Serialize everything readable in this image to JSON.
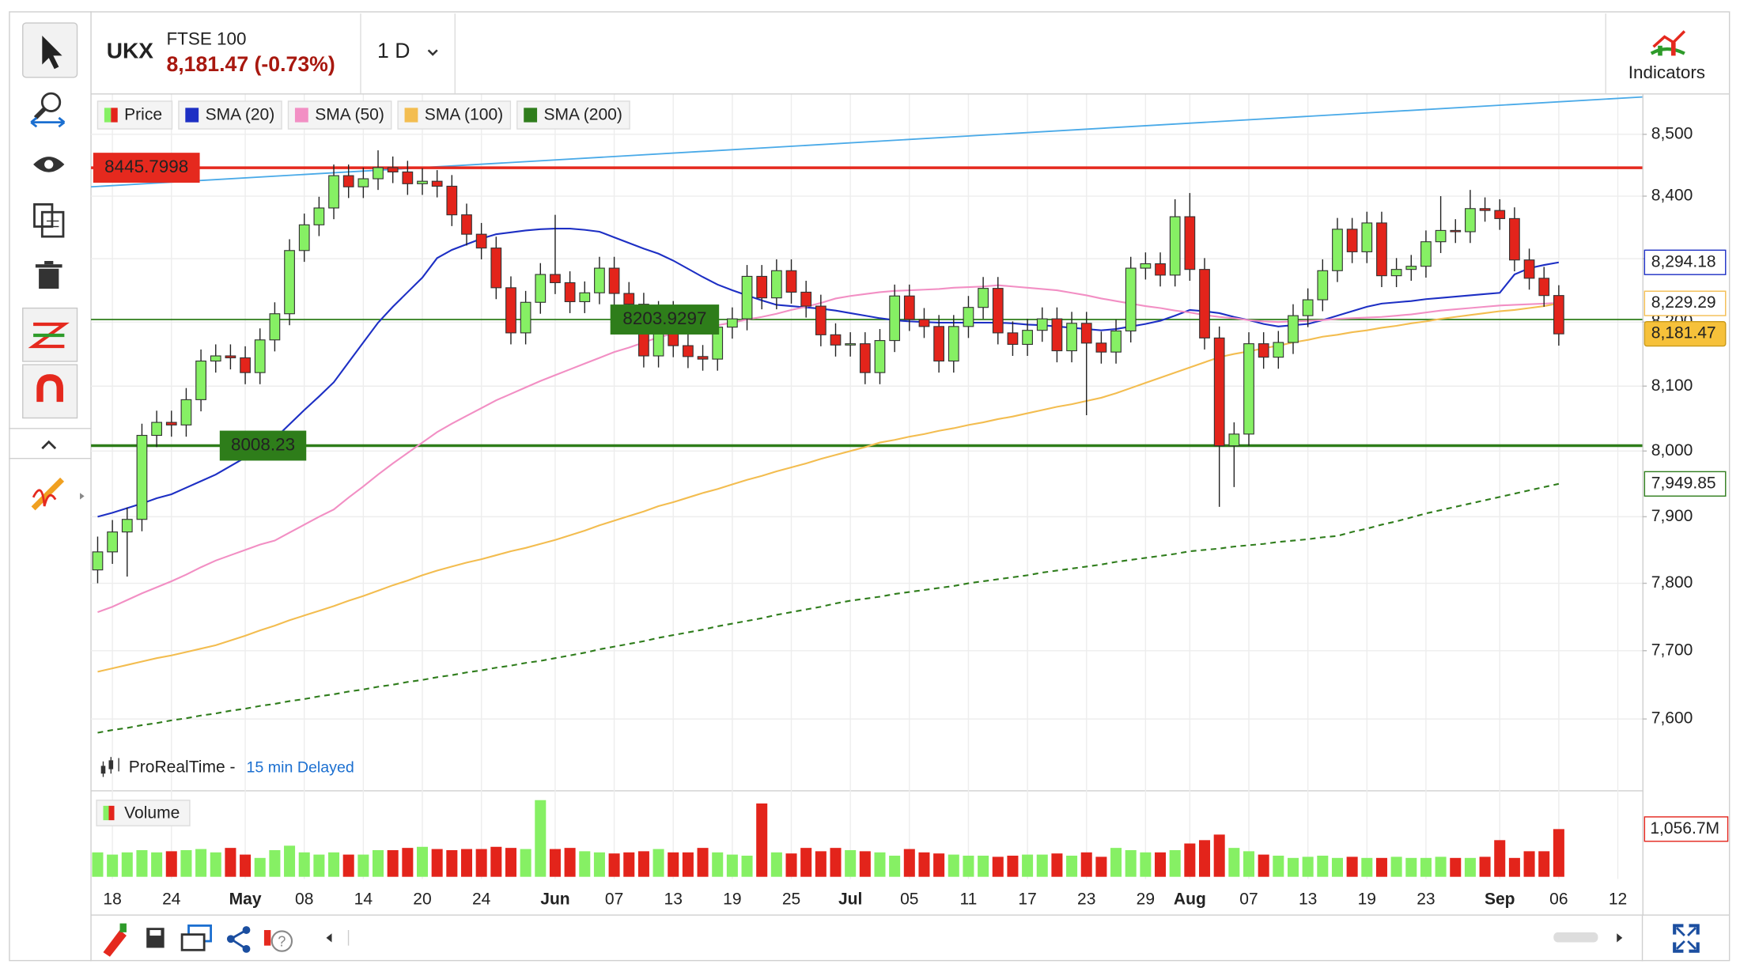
{
  "header": {
    "symbol": "UKX",
    "name": "FTSE 100",
    "quote": "8,181.47 (-0.73%)",
    "interval": "1 D",
    "indicators": "Indicators"
  },
  "footer": {
    "source": "ProRealTime -",
    "delay": "15 min Delayed"
  },
  "chart_data": {
    "type": "candlestick",
    "log_scale": true,
    "grid": true,
    "ylim": [
      7497,
      8565
    ],
    "yticks": [
      {
        "value": 7600,
        "label": "7,600"
      },
      {
        "value": 7700,
        "label": "7,700"
      },
      {
        "value": 7800,
        "label": "7,800"
      },
      {
        "value": 7900,
        "label": "7,900"
      },
      {
        "value": 8000,
        "label": "8,000"
      },
      {
        "value": 8100,
        "label": "8,100"
      },
      {
        "value": 8200,
        "label": "8,200"
      },
      {
        "value": 8300,
        "label": "8,300"
      },
      {
        "value": 8400,
        "label": "8,400"
      },
      {
        "value": 8500,
        "label": "8,500"
      }
    ],
    "categories": [
      null,
      "18",
      null,
      null,
      null,
      "24",
      null,
      null,
      null,
      null,
      "May",
      null,
      null,
      null,
      "08",
      null,
      null,
      null,
      "14",
      null,
      null,
      null,
      "20",
      null,
      null,
      null,
      "24",
      null,
      null,
      null,
      null,
      "Jun",
      null,
      null,
      null,
      "07",
      null,
      null,
      null,
      "13",
      null,
      null,
      null,
      "19",
      null,
      null,
      null,
      "25",
      null,
      null,
      null,
      "Jul",
      null,
      null,
      null,
      "05",
      null,
      null,
      null,
      "11",
      null,
      null,
      null,
      "17",
      null,
      null,
      null,
      "23",
      null,
      null,
      null,
      "29",
      null,
      null,
      "Aug",
      null,
      null,
      null,
      "07",
      null,
      null,
      null,
      "13",
      null,
      null,
      null,
      "19",
      null,
      null,
      null,
      "23",
      null,
      null,
      null,
      null,
      "Sep",
      null,
      null,
      null,
      "06",
      null,
      null,
      null,
      "12"
    ],
    "candles": {
      "name": "Price",
      "up_color": "#86f064",
      "down_color": "#e3241b",
      "last_label": "8,181.47",
      "open": [
        7820,
        7847,
        7877,
        7896,
        8024,
        8044,
        8040,
        8079,
        8139,
        8147,
        8144,
        8121,
        8172,
        8213,
        8313,
        8354,
        8381,
        8433,
        8415,
        8428,
        8446,
        8439,
        8420,
        8424,
        8416,
        8370,
        8339,
        8317,
        8254,
        8183,
        8231,
        8275,
        8262,
        8232,
        8246,
        8285,
        8245,
        8228,
        8147,
        8215,
        8163,
        8146,
        8142,
        8192,
        8205,
        8272,
        8238,
        8281,
        8247,
        8225,
        8180,
        8164,
        8166,
        8121,
        8171,
        8241,
        8204,
        8193,
        8139,
        8193,
        8223,
        8253,
        8183,
        8165,
        8187,
        8205,
        8155,
        8198,
        8167,
        8153,
        8186,
        8285,
        8292,
        8274,
        8367,
        8283,
        8175,
        8008,
        8026,
        8166,
        8145,
        8168,
        8210,
        8235,
        8281,
        8347,
        8311,
        8357,
        8273,
        8283,
        8288,
        8327,
        8345,
        8343,
        8380,
        8377,
        8364,
        8298,
        8269,
        8241.71,
        null,
        null,
        null,
        null
      ],
      "high": [
        7870,
        7895,
        7914,
        8042,
        8062,
        8062,
        8097,
        8157,
        8165,
        8165,
        8162,
        8190,
        8231,
        8331,
        8372,
        8399,
        8451,
        8451,
        8446,
        8474,
        8464,
        8457,
        8445,
        8442,
        8434,
        8388,
        8357,
        8335,
        8272,
        8249,
        8293,
        8370,
        8280,
        8264,
        8303,
        8303,
        8263,
        8246,
        8233,
        8233,
        8181,
        8164,
        8210,
        8223,
        8290,
        8290,
        8299,
        8299,
        8265,
        8243,
        8198,
        8184,
        8184,
        8189,
        8259,
        8259,
        8222,
        8211,
        8211,
        8241,
        8271,
        8271,
        8201,
        8205,
        8223,
        8223,
        8216,
        8216,
        8185,
        8204,
        8303,
        8310,
        8310,
        8395,
        8405,
        8301,
        8193,
        8044,
        8184,
        8184,
        8186,
        8228,
        8253,
        8299,
        8365,
        8365,
        8375,
        8375,
        8301,
        8306,
        8345,
        8400,
        8363,
        8410,
        8398,
        8395,
        8382,
        8316,
        8287,
        8258,
        null,
        null,
        null,
        null
      ],
      "low": [
        7800,
        7829,
        7810,
        7878,
        8006,
        8022,
        8022,
        8061,
        8121,
        8126,
        8103,
        8103,
        8154,
        8195,
        8295,
        8336,
        8363,
        8397,
        8397,
        8410,
        8421,
        8402,
        8402,
        8398,
        8352,
        8321,
        8299,
        8236,
        8165,
        8165,
        8213,
        8244,
        8214,
        8214,
        8228,
        8227,
        8210,
        8129,
        8129,
        8145,
        8128,
        8124,
        8124,
        8174,
        8187,
        8220,
        8220,
        8229,
        8207,
        8162,
        8146,
        8146,
        8103,
        8103,
        8153,
        8186,
        8175,
        8121,
        8121,
        8175,
        8205,
        8165,
        8147,
        8147,
        8169,
        8137,
        8137,
        8055,
        8135,
        8135,
        8168,
        8267,
        8256,
        8256,
        8265,
        8157,
        7915,
        7945,
        8008,
        8127,
        8127,
        8150,
        8192,
        8217,
        8263,
        8293,
        8293,
        8255,
        8255,
        8265,
        8270,
        8309,
        8325,
        8325,
        8359,
        8346,
        8280,
        8251,
        8224,
        8163,
        null,
        null,
        null,
        null
      ],
      "close": [
        7847,
        7877,
        7896,
        8024,
        8044,
        8040,
        8079,
        8139,
        8147,
        8144,
        8121,
        8172,
        8213,
        8313,
        8354,
        8381,
        8433,
        8415,
        8428,
        8446,
        8439,
        8420,
        8424,
        8416,
        8370,
        8339,
        8317,
        8254,
        8183,
        8231,
        8275,
        8262,
        8232,
        8246,
        8285,
        8245,
        8228,
        8147,
        8215,
        8163,
        8146,
        8142,
        8192,
        8205,
        8272,
        8238,
        8281,
        8247,
        8225,
        8180,
        8164,
        8166,
        8121,
        8171,
        8241,
        8204,
        8193,
        8139,
        8193,
        8223,
        8253,
        8183,
        8165,
        8187,
        8205,
        8155,
        8198,
        8167,
        8153,
        8186,
        8285,
        8292,
        8274,
        8367,
        8283,
        8175,
        8008,
        8026,
        8166,
        8145,
        8168,
        8210,
        8235,
        8281,
        8347,
        8311,
        8357,
        8273,
        8283,
        8288,
        8327,
        8345,
        8343,
        8380,
        8377,
        8364,
        8298,
        8269,
        8241.71,
        8181.47,
        null,
        null,
        null,
        null
      ]
    },
    "series": [
      {
        "name": "SMA (20)",
        "color": "#1d2fc4",
        "last_label": "8,294.18",
        "values": [
          7900,
          7906,
          7913,
          7920,
          7928,
          7934,
          7944,
          7954,
          7964,
          7977,
          7990,
          8004,
          8019,
          8041,
          8063,
          8084,
          8106,
          8137,
          8168,
          8199,
          8224,
          8247,
          8270,
          8301,
          8314,
          8323,
          8332,
          8339,
          8342,
          8345,
          8347,
          8348,
          8348,
          8346,
          8343,
          8334,
          8325,
          8316,
          8308,
          8297,
          8284,
          8271,
          8259,
          8250,
          8242,
          8234,
          8227,
          8225,
          8223,
          8221,
          8218,
          8214,
          8210,
          8206,
          8203,
          8201,
          8200,
          8199,
          8199,
          8199,
          8199,
          8199,
          8198,
          8196,
          8195,
          8193,
          8191,
          8189,
          8187,
          8189,
          8193,
          8197,
          8202,
          8210,
          8219,
          8217,
          8214,
          8208,
          8203,
          8197,
          8193,
          8195,
          8197,
          8203,
          8210,
          8217,
          8224,
          8229,
          8231,
          8233,
          8236,
          8238,
          8240,
          8242,
          8244,
          8246,
          8275,
          8285,
          8290,
          8294.18,
          null,
          null,
          null,
          null
        ]
      },
      {
        "name": "SMA (50)",
        "color": "#f28fc4",
        "values": [
          7757,
          7765,
          7775,
          7785,
          7794,
          7803,
          7813,
          7824,
          7834,
          7842,
          7850,
          7858,
          7864,
          7876,
          7888,
          7900,
          7911,
          7929,
          7946,
          7964,
          7981,
          7997,
          8013,
          8029,
          8042,
          8054,
          8066,
          8078,
          8088,
          8098,
          8108,
          8117,
          8126,
          8135,
          8144,
          8153,
          8160,
          8168,
          8176,
          8182,
          8186,
          8191,
          8195,
          8199,
          8204,
          8208,
          8213,
          8219,
          8224,
          8230,
          8237,
          8241,
          8244,
          8247,
          8249,
          8250,
          8251,
          8252,
          8254,
          8255,
          8256,
          8258,
          8256,
          8254,
          8252,
          8250,
          8246,
          8242,
          8237,
          8233,
          8229,
          8225,
          8222,
          8218,
          8215,
          8211,
          8208,
          8206,
          8203,
          8201,
          8200,
          8201,
          8202,
          8203,
          8205,
          8206,
          8207,
          8208,
          8210,
          8212,
          8215,
          8218,
          8220,
          8222,
          8224,
          8226,
          8227,
          8228,
          8229,
          8230,
          null,
          null,
          null,
          null
        ]
      },
      {
        "name": "SMA (100)",
        "color": "#f3bd50",
        "last_label": "8,229.29",
        "values": [
          7669,
          7674,
          7679,
          7684,
          7689,
          7693,
          7698,
          7703,
          7708,
          7715,
          7722,
          7730,
          7737,
          7745,
          7752,
          7759,
          7766,
          7774,
          7781,
          7789,
          7797,
          7804,
          7812,
          7819,
          7825,
          7831,
          7836,
          7842,
          7848,
          7853,
          7859,
          7865,
          7872,
          7879,
          7887,
          7894,
          7901,
          7908,
          7916,
          7922,
          7929,
          7936,
          7942,
          7949,
          7956,
          7962,
          7969,
          7975,
          7981,
          7988,
          7994,
          8000,
          8006,
          8013,
          8017,
          8022,
          8026,
          8031,
          8035,
          8040,
          8044,
          8049,
          8053,
          8058,
          8063,
          8068,
          8072,
          8077,
          8082,
          8089,
          8097,
          8105,
          8113,
          8121,
          8129,
          8137,
          8145,
          8150,
          8154,
          8159,
          8163,
          8168,
          8172,
          8177,
          8180,
          8184,
          8187,
          8191,
          8194,
          8198,
          8201,
          8205,
          8208,
          8211,
          8214,
          8217,
          8219,
          8222,
          8225,
          8229.29,
          null,
          null,
          null,
          null
        ]
      },
      {
        "name": "SMA (200)",
        "color": "#2f7d1c",
        "line_style": "dashed",
        "last_label": "7,949.85",
        "values": [
          7580,
          7584,
          7587,
          7591,
          7594,
          7598,
          7601,
          7605,
          7608,
          7612,
          7615,
          7619,
          7622,
          7626,
          7629,
          7633,
          7636,
          7640,
          7643,
          7647,
          7650,
          7654,
          7657,
          7661,
          7664,
          7668,
          7671,
          7675,
          7678,
          7682,
          7685,
          7689,
          7693,
          7697,
          7702,
          7706,
          7710,
          7714,
          7719,
          7723,
          7727,
          7731,
          7736,
          7740,
          7744,
          7748,
          7753,
          7757,
          7761,
          7765,
          7770,
          7774,
          7777,
          7780,
          7784,
          7787,
          7790,
          7793,
          7796,
          7800,
          7803,
          7806,
          7809,
          7812,
          7816,
          7819,
          7822,
          7825,
          7828,
          7832,
          7835,
          7838,
          7841,
          7844,
          7848,
          7850,
          7852,
          7855,
          7857,
          7859,
          7862,
          7864,
          7866,
          7869,
          7871,
          7877,
          7882,
          7888,
          7893,
          7899,
          7905,
          7910,
          7915,
          7920,
          7925,
          7930,
          7935,
          7940,
          7945,
          7949.85,
          null,
          null,
          null,
          null
        ]
      }
    ],
    "levels": [
      {
        "value": 8445.7998,
        "color": "#e5291e"
      },
      {
        "value": 8203.9297,
        "color": "#2e7d1a"
      },
      {
        "value": 8008.23,
        "color": "#2e7d1a"
      }
    ],
    "trendline": {
      "color": "#4aaae8",
      "start": 8415,
      "end": 8561
    },
    "volume": {
      "name": "Volume",
      "ylim": [
        0,
        1843
      ],
      "last_label": "1,056.7M",
      "values": [
        541,
        492,
        541,
        590,
        541,
        566,
        590,
        615,
        541,
        640,
        492,
        418,
        590,
        689,
        541,
        492,
        541,
        492,
        492,
        590,
        590,
        640,
        664,
        615,
        590,
        615,
        615,
        664,
        640,
        615,
        1698,
        615,
        640,
        566,
        541,
        517,
        541,
        566,
        615,
        541,
        541,
        640,
        541,
        492,
        468,
        1624,
        541,
        517,
        640,
        566,
        640,
        590,
        566,
        541,
        468,
        615,
        541,
        517,
        492,
        468,
        468,
        443,
        468,
        492,
        492,
        517,
        468,
        541,
        443,
        640,
        590,
        541,
        541,
        590,
        738,
        812,
        935,
        640,
        566,
        492,
        468,
        418,
        443,
        468,
        418,
        443,
        418,
        418,
        443,
        418,
        418,
        443,
        418,
        418,
        443,
        812,
        418,
        566,
        566,
        1056.7,
        null,
        null,
        null,
        null
      ]
    }
  }
}
